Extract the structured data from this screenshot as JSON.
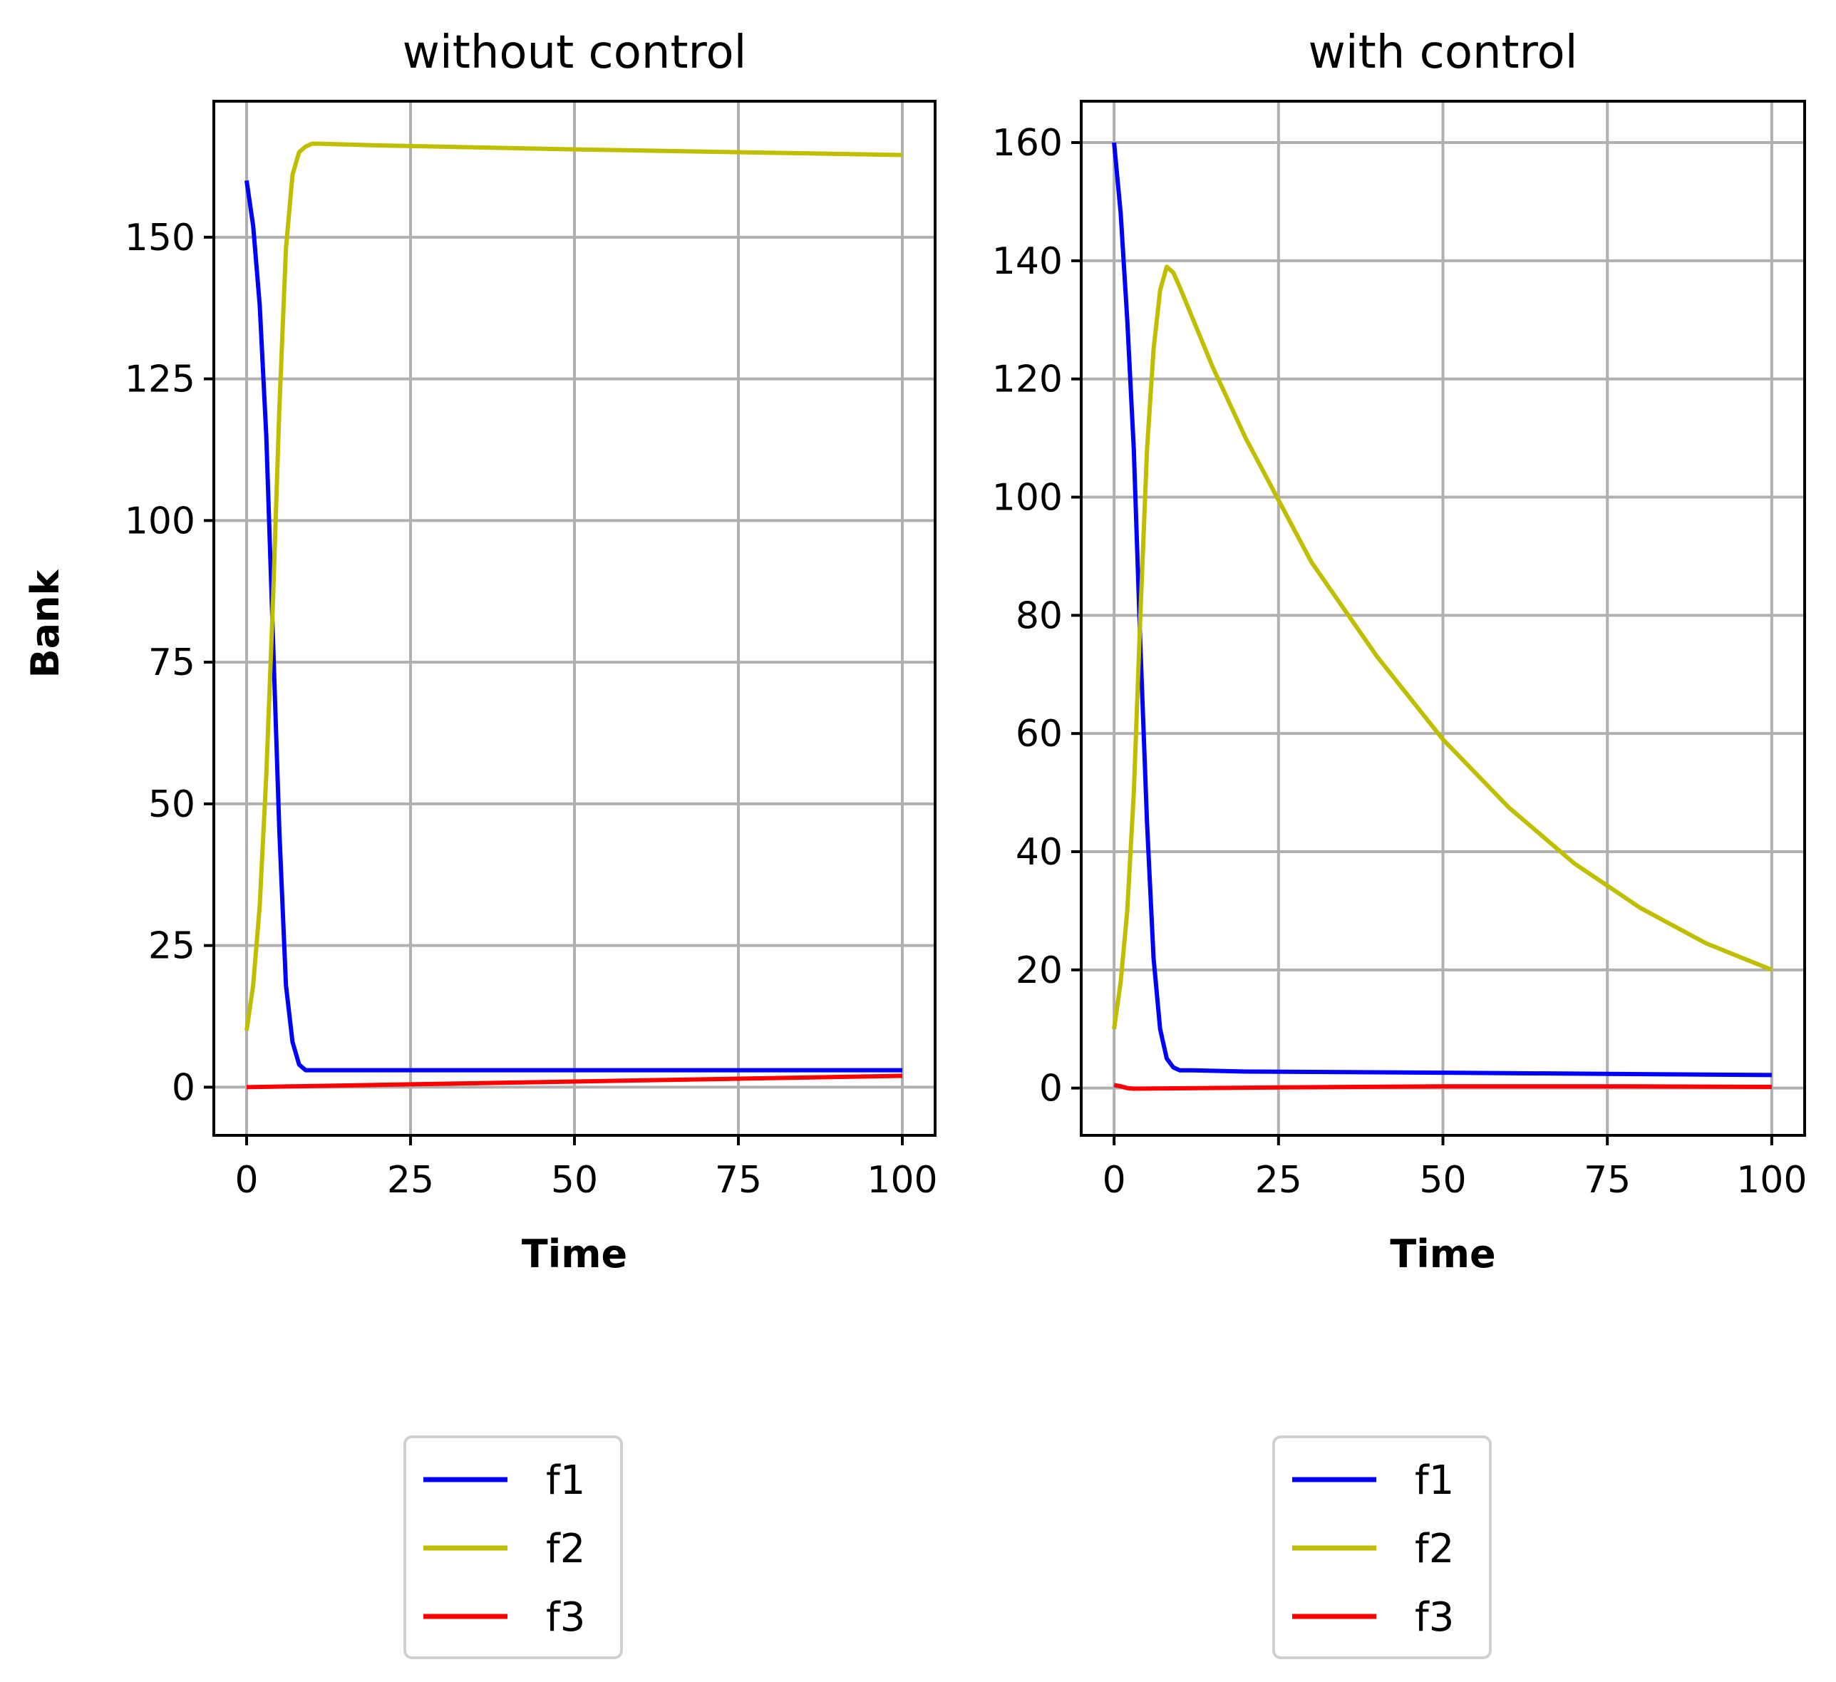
{
  "chart_data": [
    {
      "type": "line",
      "title": "without control",
      "xlabel": "Time",
      "ylabel": "Bank",
      "xlim": [
        -5,
        105
      ],
      "ylim": [
        -8.5,
        174
      ],
      "xticks": [
        0,
        25,
        50,
        75,
        100
      ],
      "yticks": [
        0,
        25,
        50,
        75,
        100,
        125,
        150
      ],
      "grid": true,
      "legend": "below",
      "series": [
        {
          "name": "f1",
          "color": "#0000ff",
          "x": [
            0,
            1,
            2,
            3,
            4,
            5,
            6,
            7,
            8,
            9,
            10,
            12,
            20,
            50,
            100
          ],
          "y": [
            160,
            152,
            138,
            115,
            80,
            45,
            18,
            8,
            4,
            3,
            3,
            3,
            3,
            3,
            3
          ]
        },
        {
          "name": "f2",
          "color": "#bfbf00",
          "x": [
            0,
            1,
            2,
            3,
            4,
            5,
            6,
            7,
            8,
            9,
            10,
            11,
            20,
            50,
            100
          ],
          "y": [
            10,
            18,
            32,
            55,
            85,
            120,
            148,
            161,
            165,
            166,
            166.5,
            166.5,
            166.2,
            165.5,
            164.5
          ]
        },
        {
          "name": "f3",
          "color": "#ff0000",
          "x": [
            0,
            25,
            50,
            75,
            100
          ],
          "y": [
            0,
            0.5,
            1,
            1.5,
            2
          ]
        }
      ]
    },
    {
      "type": "line",
      "title": "with control",
      "xlabel": "Time",
      "ylabel": "",
      "xlim": [
        -5,
        105
      ],
      "ylim": [
        -8,
        167
      ],
      "xticks": [
        0,
        25,
        50,
        75,
        100
      ],
      "yticks": [
        0,
        20,
        40,
        60,
        80,
        100,
        120,
        140,
        160
      ],
      "grid": true,
      "legend": "below",
      "series": [
        {
          "name": "f1",
          "color": "#0000ff",
          "x": [
            0,
            1,
            2,
            3,
            4,
            5,
            6,
            7,
            8,
            9,
            10,
            12,
            20,
            50,
            100
          ],
          "y": [
            160,
            148,
            130,
            108,
            75,
            45,
            22,
            10,
            5,
            3.5,
            3,
            3,
            2.8,
            2.6,
            2.2
          ]
        },
        {
          "name": "f2",
          "color": "#bfbf00",
          "x": [
            0,
            1,
            2,
            3,
            4,
            5,
            6,
            7,
            8,
            9,
            10,
            15,
            20,
            25,
            30,
            40,
            50,
            60,
            70,
            80,
            90,
            100
          ],
          "y": [
            10,
            18,
            30,
            50,
            80,
            108,
            125,
            135,
            139,
            138,
            135.5,
            122,
            110,
            99.5,
            89,
            73,
            59,
            47.5,
            38,
            30.5,
            24.5,
            20
          ]
        },
        {
          "name": "f3",
          "color": "#ff0000",
          "x": [
            0,
            1,
            2,
            3,
            25,
            50,
            75,
            100
          ],
          "y": [
            0.5,
            0.3,
            0,
            -0.1,
            0.1,
            0.3,
            0.3,
            0.2
          ]
        }
      ]
    }
  ]
}
